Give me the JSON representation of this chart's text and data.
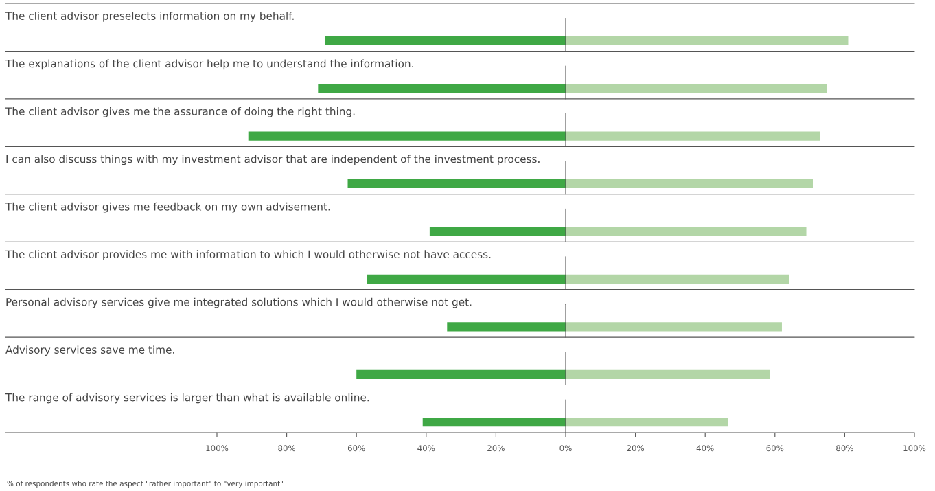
{
  "chart_data": {
    "type": "bar",
    "orientation": "horizontal",
    "stacked": true,
    "categories": [
      "The client advisor preselects information on my behalf.",
      "The explanations of the client advisor help me to understand the information.",
      "The client advisor gives me the assurance of doing the right thing.",
      "I can also discuss things with my investment advisor that are independent of the investment process.",
      "The client advisor gives me feedback on my own advisement.",
      "The client advisor provides me with information to which I would otherwise not have access.",
      "Personal advisory services give me integrated solutions which I would otherwise not get.",
      "Advisory services save me time.",
      "The range of advisory services is larger than what is available online."
    ],
    "series": [
      {
        "color": "#3fa845",
        "values": [
          -69,
          -71,
          -91,
          -62.5,
          -39,
          -57,
          -34,
          -60,
          -41
        ]
      },
      {
        "color": "#b3d6a7",
        "values": [
          81,
          75,
          73,
          71,
          69,
          64,
          62,
          58.5,
          46.5
        ]
      }
    ],
    "xlim": [
      -100,
      100
    ],
    "xticks": [
      {
        "value": -100,
        "label": "100%"
      },
      {
        "value": -80,
        "label": "80%"
      },
      {
        "value": -60,
        "label": "60%"
      },
      {
        "value": -40,
        "label": "40%"
      },
      {
        "value": -20,
        "label": "20%"
      },
      {
        "value": 0,
        "label": "0%"
      },
      {
        "value": 20,
        "label": "20%"
      },
      {
        "value": 40,
        "label": "40%"
      },
      {
        "value": 60,
        "label": "60%"
      },
      {
        "value": 80,
        "label": "80%"
      },
      {
        "value": 100,
        "label": "100%"
      }
    ],
    "grid": false,
    "annotations": [
      "% of respondents who rate the aspect \"rather important\" to \"very important\""
    ]
  }
}
